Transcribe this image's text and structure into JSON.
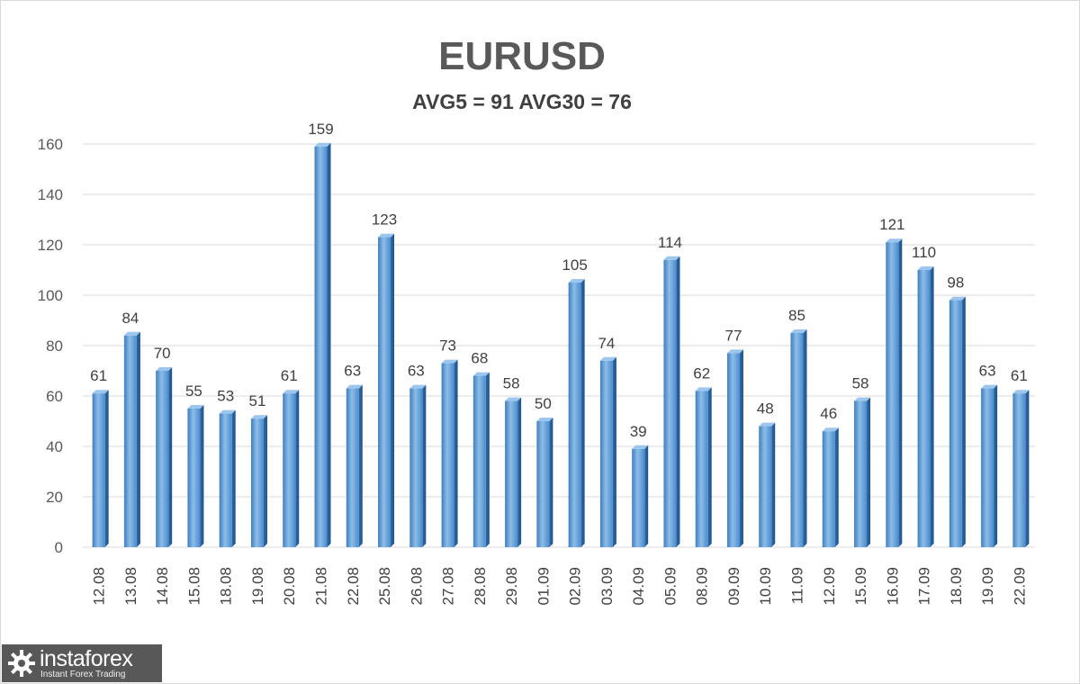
{
  "chart_data": {
    "type": "bar",
    "title": "EURUSD",
    "subtitle": "AVG5 = 91 AVG30 = 76",
    "categories": [
      "12.08",
      "13.08",
      "14.08",
      "15.08",
      "18.08",
      "19.08",
      "20.08",
      "21.08",
      "22.08",
      "25.08",
      "26.08",
      "27.08",
      "28.08",
      "29.08",
      "01.09",
      "02.09",
      "03.09",
      "04.09",
      "05.09",
      "08.09",
      "09.09",
      "10.09",
      "11.09",
      "12.09",
      "15.09",
      "16.09",
      "17.09",
      "18.09",
      "19.09",
      "22.09"
    ],
    "values": [
      61,
      84,
      70,
      55,
      53,
      51,
      61,
      159,
      63,
      123,
      63,
      73,
      68,
      58,
      50,
      105,
      74,
      39,
      114,
      62,
      77,
      48,
      85,
      46,
      58,
      121,
      110,
      98,
      63,
      61
    ],
    "ylim": [
      0,
      160
    ],
    "yticks": [
      0,
      20,
      40,
      60,
      80,
      100,
      120,
      140,
      160
    ],
    "grid": true,
    "data_labels": true,
    "bar_color": "#5b9bd5",
    "grid_color": "#d9d9d9"
  },
  "watermark": {
    "name": "instaforex",
    "tagline": "Instant Forex Trading"
  }
}
